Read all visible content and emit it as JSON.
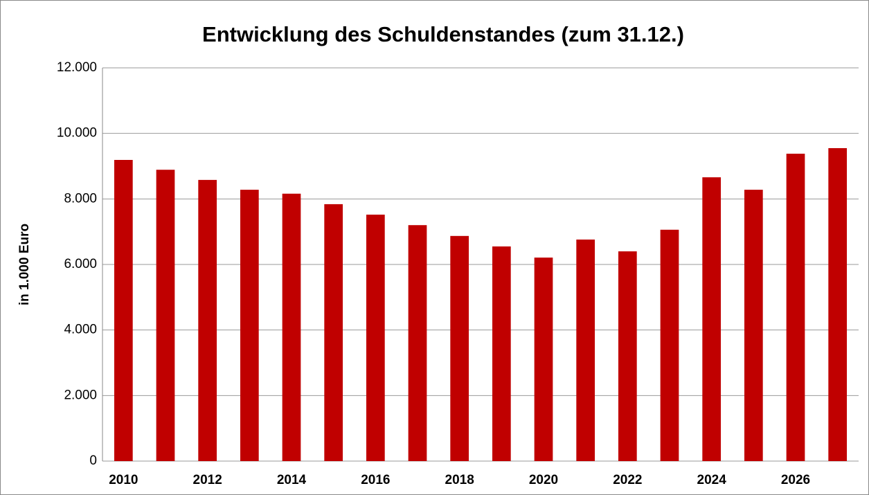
{
  "chart_data": {
    "type": "bar",
    "title": "Entwicklung des Schuldenstandes (zum 31.12.)",
    "y_label": "in 1.000 Euro",
    "categories": [
      "2010",
      null,
      "2012",
      null,
      "2014",
      null,
      "2016",
      null,
      "2018",
      null,
      "2020",
      null,
      "2022",
      null,
      "2024",
      null,
      "2026",
      null
    ],
    "values": [
      9190,
      8890,
      8580,
      8280,
      8160,
      7840,
      7520,
      7200,
      6870,
      6550,
      6210,
      6760,
      6400,
      7060,
      8660,
      8280,
      9380,
      9550
    ],
    "color": "#c00000",
    "ylim": [
      0,
      12000
    ],
    "yticks": [
      0,
      {
        "value": 2000,
        "label": "2.000"
      },
      {
        "value": 4000,
        "label": "4.000"
      },
      {
        "value": 6000,
        "label": "6.000"
      },
      {
        "value": 8000,
        "label": "8.000"
      },
      {
        "value": 10000,
        "label": "10.000"
      },
      {
        "value": 12000,
        "label": "12.000"
      }
    ],
    "grid": true
  }
}
